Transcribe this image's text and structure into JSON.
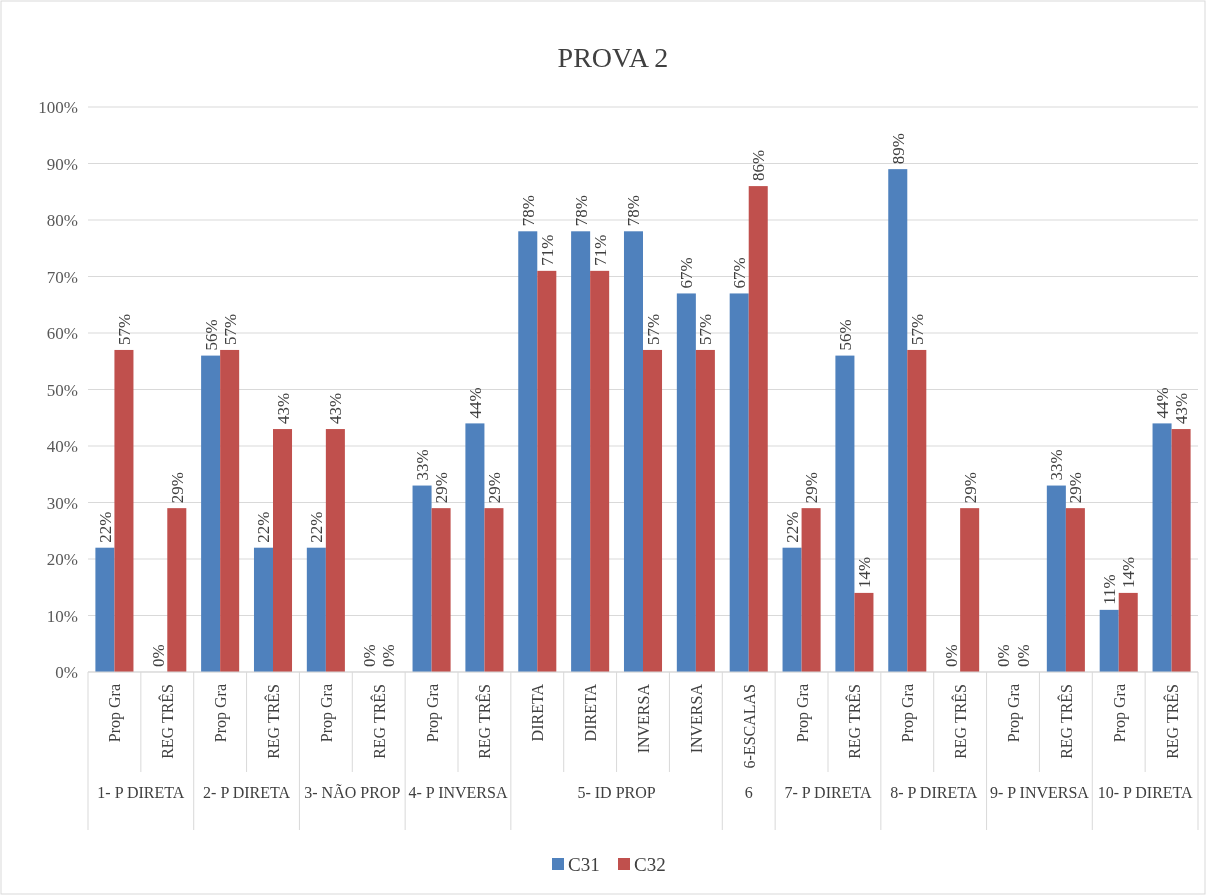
{
  "chart_data": {
    "type": "bar",
    "title": "PROVA 2",
    "categories": [
      "Prop Gra",
      "REG TRÊS",
      "Prop Gra",
      "REG TRÊS",
      "Prop Gra",
      "REG TRÊS",
      "Prop Gra",
      "REG TRÊS",
      "DIRETA",
      "DIRETA",
      "INVERSA",
      "INVERSA",
      "6-ESCALAS",
      "Prop Gra",
      "REG TRÊS",
      "Prop Gra",
      "REG TRÊS",
      "Prop Gra",
      "REG TRÊS",
      "Prop Gra",
      "REG TRÊS"
    ],
    "annotations": [
      "1- P DIRETA",
      "2- P DIRETA",
      "3- NÃO PROP",
      "4- P INVERSA",
      "5- ID PROP",
      "6",
      "7- P DIRETA",
      "8- P DIRETA",
      "9- P INVERSA",
      "10- P DIRETA"
    ],
    "series": [
      {
        "name": "C31",
        "color": "#4f81bd",
        "values": [
          22,
          0,
          56,
          22,
          22,
          0,
          33,
          44,
          78,
          78,
          78,
          67,
          67,
          22,
          56,
          89,
          0,
          0,
          33,
          11,
          44
        ],
        "value_labels": [
          "22%",
          "0%",
          "56%",
          "22%",
          "22%",
          "0%",
          "33%",
          "44%",
          "78%",
          "78%",
          "78%",
          "67%",
          "67%",
          "22%",
          "56%",
          "89%",
          "0%",
          "0%",
          "33%",
          "11%",
          "44%"
        ]
      },
      {
        "name": "C32",
        "color": "#c0504d",
        "values": [
          57,
          29,
          57,
          43,
          43,
          0,
          29,
          29,
          71,
          71,
          57,
          57,
          86,
          29,
          14,
          57,
          29,
          0,
          29,
          14,
          43
        ],
        "value_labels": [
          "57%",
          "29%",
          "57%",
          "43%",
          "43%",
          "0%",
          "29%",
          "29%",
          "71%",
          "71%",
          "57%",
          "57%",
          "86%",
          "29%",
          "14%",
          "57%",
          "29%",
          "0%",
          "29%",
          "14%",
          "43%"
        ]
      }
    ],
    "ylim": [
      0,
      100
    ],
    "yticks": [
      {
        "value": 0,
        "label": "0%"
      },
      {
        "value": 10,
        "label": "10%"
      },
      {
        "value": 20,
        "label": "20%"
      },
      {
        "value": 30,
        "label": "30%"
      },
      {
        "value": 40,
        "label": "40%"
      },
      {
        "value": 50,
        "label": "50%"
      },
      {
        "value": 60,
        "label": "60%"
      },
      {
        "value": 70,
        "label": "70%"
      },
      {
        "value": 80,
        "label": "80%"
      },
      {
        "value": 90,
        "label": "90%"
      },
      {
        "value": 100,
        "label": "100%"
      }
    ],
    "grid": "y",
    "legend": "bottom"
  }
}
